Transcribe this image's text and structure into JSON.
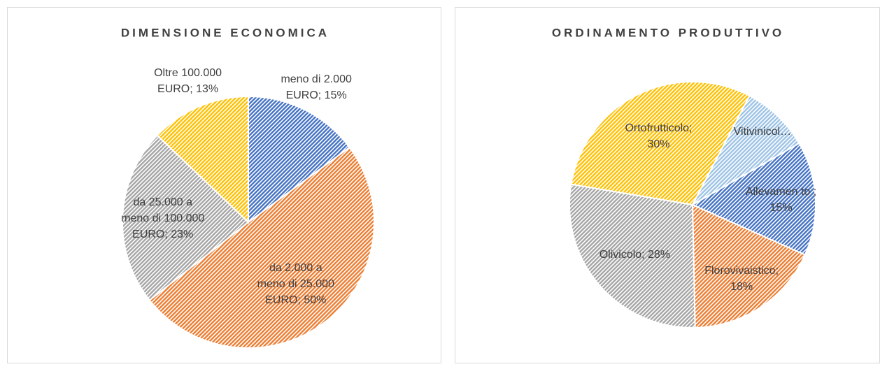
{
  "chart_data": [
    {
      "type": "pie",
      "title": "DIMENSIONE ECONOMICA",
      "values": [
        15,
        50,
        23,
        13
      ],
      "value_labels": [
        "meno di 2.000 EURO; 15%",
        "da 2.000 a meno di 25.000 EURO; 50%",
        "da 25.000 a meno di 100.000 EURO; 23%",
        "Oltre 100.000 EURO; 13%"
      ],
      "colors": [
        "#4472c4",
        "#ed7d31",
        "#a5a5a5",
        "#ffc000"
      ]
    },
    {
      "type": "pie",
      "title": "ORDINAMENTO PRODUTTIVO",
      "values": [
        15,
        18,
        28,
        30,
        9
      ],
      "value_labels": [
        "Allevamen to ; 15%",
        "Florovivaistico; 18%",
        "Olivicolo; 28%",
        "Ortofrutticolo; 30%",
        "Vitivinicol…"
      ],
      "colors": [
        "#4472c4",
        "#ed7d31",
        "#a5a5a5",
        "#ffc000",
        "#9dc3e6"
      ]
    }
  ]
}
